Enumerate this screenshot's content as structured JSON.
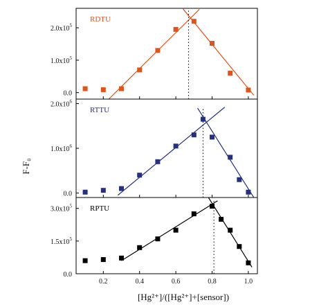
{
  "chart_data": {
    "type": "scatter",
    "xlabel": "[Hg²⁺]/([Hg²⁺]+[sensor])",
    "ylabel": "F-F₀",
    "xlim": [
      0.05,
      1.05
    ],
    "xticks": [
      {
        "v": 0.2,
        "label": "0.2"
      },
      {
        "v": 0.4,
        "label": "0.4"
      },
      {
        "v": 0.6,
        "label": "0.6"
      },
      {
        "v": 0.8,
        "label": "0.8"
      },
      {
        "v": 1.0,
        "label": "1.0"
      }
    ],
    "grid": false,
    "panels": [
      {
        "name": "RDTU",
        "color": "#e0541c",
        "ylim": [
          -0.2,
          2.6
        ],
        "yticks": [
          {
            "v": 0,
            "label": "0.0"
          },
          {
            "v": 1,
            "label": "1.0x10",
            "exp": "5"
          },
          {
            "v": 2,
            "label": "2.0x10",
            "exp": "5"
          }
        ],
        "x": [
          0.1,
          0.2,
          0.3,
          0.4,
          0.5,
          0.6,
          0.7,
          0.8,
          0.9,
          1.0
        ],
        "y": [
          0.12,
          0.09,
          0.12,
          0.7,
          1.3,
          1.95,
          2.2,
          1.52,
          0.6,
          0.08
        ],
        "fit_lines": [
          [
            [
              0.23,
              -0.2
            ],
            [
              0.73,
              2.57
            ]
          ],
          [
            [
              0.64,
              2.58
            ],
            [
              1.03,
              -0.08
            ]
          ]
        ],
        "vline_x": 0.67
      },
      {
        "name": "RTTU",
        "color": "#25307f",
        "ylim": [
          -0.1,
          2.1
        ],
        "yticks": [
          {
            "v": 0,
            "label": "0.0"
          },
          {
            "v": 1,
            "label": "1.0x10",
            "exp": "6"
          },
          {
            "v": 2,
            "label": "2.0x10",
            "exp": "6"
          }
        ],
        "x": [
          0.1,
          0.2,
          0.3,
          0.4,
          0.5,
          0.6,
          0.7,
          0.75,
          0.8,
          0.9,
          0.95,
          1.0
        ],
        "y": [
          0.02,
          0.06,
          0.1,
          0.4,
          0.7,
          1.05,
          1.3,
          1.65,
          1.25,
          0.8,
          0.3,
          0.02
        ],
        "fit_lines": [
          [
            [
              0.28,
              -0.05
            ],
            [
              0.87,
              1.92
            ]
          ],
          [
            [
              0.72,
              1.9
            ],
            [
              1.03,
              -0.1
            ]
          ]
        ],
        "vline_x": 0.75
      },
      {
        "name": "RPTU",
        "color": "#000000",
        "ylim": [
          0,
          3.5
        ],
        "yticks": [
          {
            "v": 0,
            "label": "0.0"
          },
          {
            "v": 1.5,
            "label": "1.5x10",
            "exp": "5"
          },
          {
            "v": 3,
            "label": "3.0x10",
            "exp": "5"
          }
        ],
        "x": [
          0.1,
          0.2,
          0.3,
          0.4,
          0.5,
          0.6,
          0.7,
          0.8,
          0.85,
          0.9,
          0.95,
          1.0
        ],
        "y": [
          0.6,
          0.65,
          0.72,
          1.2,
          1.6,
          2.0,
          2.75,
          3.1,
          2.5,
          2.0,
          1.25,
          0.5
        ],
        "fit_lines": [
          [
            [
              0.3,
              0.6
            ],
            [
              0.83,
              3.35
            ]
          ],
          [
            [
              0.78,
              3.5
            ],
            [
              1.02,
              0.3
            ]
          ]
        ],
        "vline_x": 0.81
      }
    ]
  }
}
